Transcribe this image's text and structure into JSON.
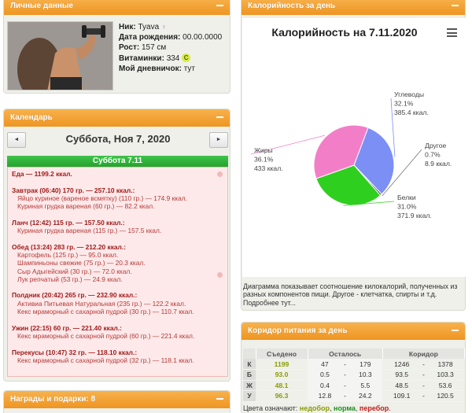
{
  "personal": {
    "header": "Личные данные",
    "nick_label": "Ник:",
    "nick_value": "Tyava",
    "birth_label": "Дата рождения:",
    "birth_value": "00.00.0000",
    "height_label": "Рост:",
    "height_value": "157 см",
    "vitamins_label": "Витаминки:",
    "vitamins_value": "334",
    "vitamins_badge": "C",
    "diary_label": "Мой дневничок:",
    "diary_value": "тут"
  },
  "calendar": {
    "header": "Календарь",
    "prev_icon": "◄",
    "next_icon": "►",
    "date_title": "Суббота, Ноя 7, 2020",
    "day_label": "Суббота 7.11",
    "total": "Еда — 1199.2 ккал.",
    "meals": [
      {
        "title": "Завтрак (06:40) 170 гр. — 257.10 ккал.:",
        "items": [
          "Яйцо куриное (вареное всмятку) (110 гр.) — 174.9 ккал.",
          "Куриная грудка вареная (60 гр.) — 82.2 ккал."
        ]
      },
      {
        "title": "Ланч (12:42) 115 гр. — 157.50 ккал.:",
        "items": [
          "Куриная грудка вареная (115 гр.) — 157.5 ккал."
        ]
      },
      {
        "title": "Обед (13:24) 283 гр. — 212.20 ккал.:",
        "items": [
          "Картофель (125 гр.) — 95.0 ккал.",
          "Шампиньоны свежие (75 гр.) — 20.3 ккал.",
          "Сыр Адыгейский (30 гр.) — 72.0 ккал.",
          "Лук репчатый (53 гр.) — 24.9 ккал."
        ]
      },
      {
        "title": "Полдник (20:42) 265 гр. — 232.90 ккал.:",
        "items": [
          "Активиа Питьевая Натуральная (235 гр.) — 122.2 ккал.",
          "Кекс мраморный с сахарной пудрой (30 гр.) — 110.7 ккал."
        ]
      },
      {
        "title": "Ужин (22:15) 60 гр. — 221.40 ккал.:",
        "items": [
          "Кекс мраморный с сахарной пудрой (60 гр.) — 221.4 ккал."
        ]
      },
      {
        "title": "Перекусы (10:47) 32 гр. — 118.10 ккал.:",
        "items": [
          "Кекс мраморный с сахарной пудрой (32 гр.) — 118.1 ккал."
        ]
      }
    ]
  },
  "awards": {
    "header": "Награды и подарки: 8"
  },
  "caloric": {
    "header": "Калорийность за день",
    "note": "Диаграмма показывает соотношение килокалорий, полученных из разных компонентов пищи. Другое - клетчатка, спирты и т.д. Подробнее тут..."
  },
  "chart_data": {
    "type": "pie",
    "title": "Калорийность на 7.11.2020",
    "slices": [
      {
        "name": "Углеводы",
        "percent_label": "32.1%",
        "kcal_label": "385.4 ккал.",
        "value": 32.1,
        "color": "#7b8ff5"
      },
      {
        "name": "Другое",
        "percent_label": "0.7%",
        "kcal_label": "8.9 ккал.",
        "value": 0.7,
        "color": "#3a3a3a"
      },
      {
        "name": "Белки",
        "percent_label": "31.0%",
        "kcal_label": "371.9 ккал.",
        "value": 31.0,
        "color": "#2fcf1f"
      },
      {
        "name": "Жиры",
        "percent_label": "36.1%",
        "kcal_label": "433 ккал.",
        "value": 36.1,
        "color": "#f37ec8"
      }
    ]
  },
  "corridor": {
    "header": "Коридор питания за день",
    "columns": [
      "",
      "Съедено",
      "Осталось",
      "Коридор"
    ],
    "rows": [
      {
        "key": "К",
        "eaten": "1199",
        "left_a": "47",
        "left_b": "179",
        "cor_a": "1246",
        "cor_b": "1378"
      },
      {
        "key": "Б",
        "eaten": "93.0",
        "left_a": "0.5",
        "left_b": "10.3",
        "cor_a": "93.5",
        "cor_b": "103.3"
      },
      {
        "key": "Ж",
        "eaten": "48.1",
        "left_a": "0.4",
        "left_b": "5.5",
        "cor_a": "48.5",
        "cor_b": "53.6"
      },
      {
        "key": "У",
        "eaten": "96.3",
        "left_a": "12.8",
        "left_b": "24.2",
        "cor_a": "109.1",
        "cor_b": "120.5"
      }
    ],
    "dash": "-",
    "legend_prefix": "Цвета означают:",
    "legend_1": "недобор",
    "legend_2": "норма",
    "legend_3": "перебор",
    "legend_sep": ",",
    "legend_end": "."
  }
}
